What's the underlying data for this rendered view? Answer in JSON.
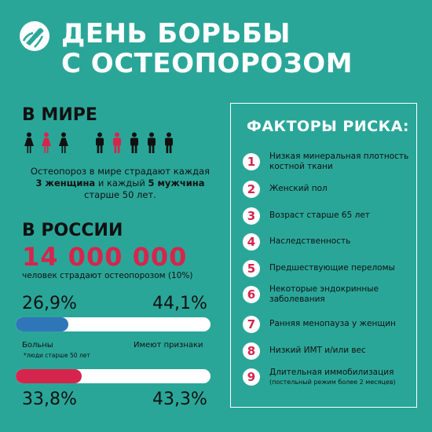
{
  "header": {
    "title_line1": "ДЕНЬ БОРЬБЫ",
    "title_line2": "С ОСТЕОПОРОЗОМ"
  },
  "world": {
    "heading": "В МИРЕ",
    "people_icons": [
      {
        "icon": "woman-icon",
        "color": "#111111"
      },
      {
        "icon": "woman-icon",
        "color": "#d6254c"
      },
      {
        "icon": "woman-icon",
        "color": "#111111"
      },
      {
        "icon": "man-icon",
        "color": "#111111"
      },
      {
        "icon": "man-icon",
        "color": "#d6254c"
      },
      {
        "icon": "man-icon",
        "color": "#111111"
      },
      {
        "icon": "man-icon",
        "color": "#111111"
      },
      {
        "icon": "man-icon",
        "color": "#111111"
      }
    ],
    "text_line1": "Остеопороз в мире страдают каждая",
    "text_women": "3 женщина",
    "text_and": " и каждый ",
    "text_men": "5 мужчина",
    "text_line3": "старше 50 лет."
  },
  "russia": {
    "heading": "В РОССИИ",
    "big_number": "14 000 000",
    "subtitle": "человек страдают остеопорозом (10%)"
  },
  "stats": {
    "women": {
      "sick_pct": "26,9%",
      "signs_pct": "44,1%",
      "sick_fraction": 0.269,
      "signs_fraction": 0.441,
      "sick_color": "#2f76b8"
    },
    "sick_label": "Больны",
    "signs_label": "Имеют признаки",
    "footnote": "*люди старше 50 лет",
    "men": {
      "sick_pct": "33,8%",
      "signs_pct": "43,3%",
      "sick_fraction": 0.338,
      "signs_fraction": 0.433,
      "sick_color": "#d6254c"
    }
  },
  "risk": {
    "title": "ФАКТОРЫ РИСКА:",
    "items": [
      {
        "num": "1",
        "text": "Низкая минеральная плотность костной ткани",
        "sub": ""
      },
      {
        "num": "2",
        "text": "Женский пол",
        "sub": ""
      },
      {
        "num": "3",
        "text": "Возраст старше 65 лет",
        "sub": ""
      },
      {
        "num": "4",
        "text": "Наследственность",
        "sub": ""
      },
      {
        "num": "5",
        "text": "Предшествующие переломы",
        "sub": ""
      },
      {
        "num": "6",
        "text": "Некоторые эндокринные заболевания",
        "sub": ""
      },
      {
        "num": "7",
        "text": "Ранняя менопауза у женщин",
        "sub": ""
      },
      {
        "num": "8",
        "text": "Низкий ИМТ и/или вес",
        "sub": ""
      },
      {
        "num": "9",
        "text": "Длительная иммобилизация",
        "sub": "(постельный режим более 2 месяцев)"
      }
    ]
  },
  "colors": {
    "background": "#2aa699",
    "accent_red": "#d6254c",
    "accent_blue": "#2f76b8",
    "white": "#ffffff"
  }
}
